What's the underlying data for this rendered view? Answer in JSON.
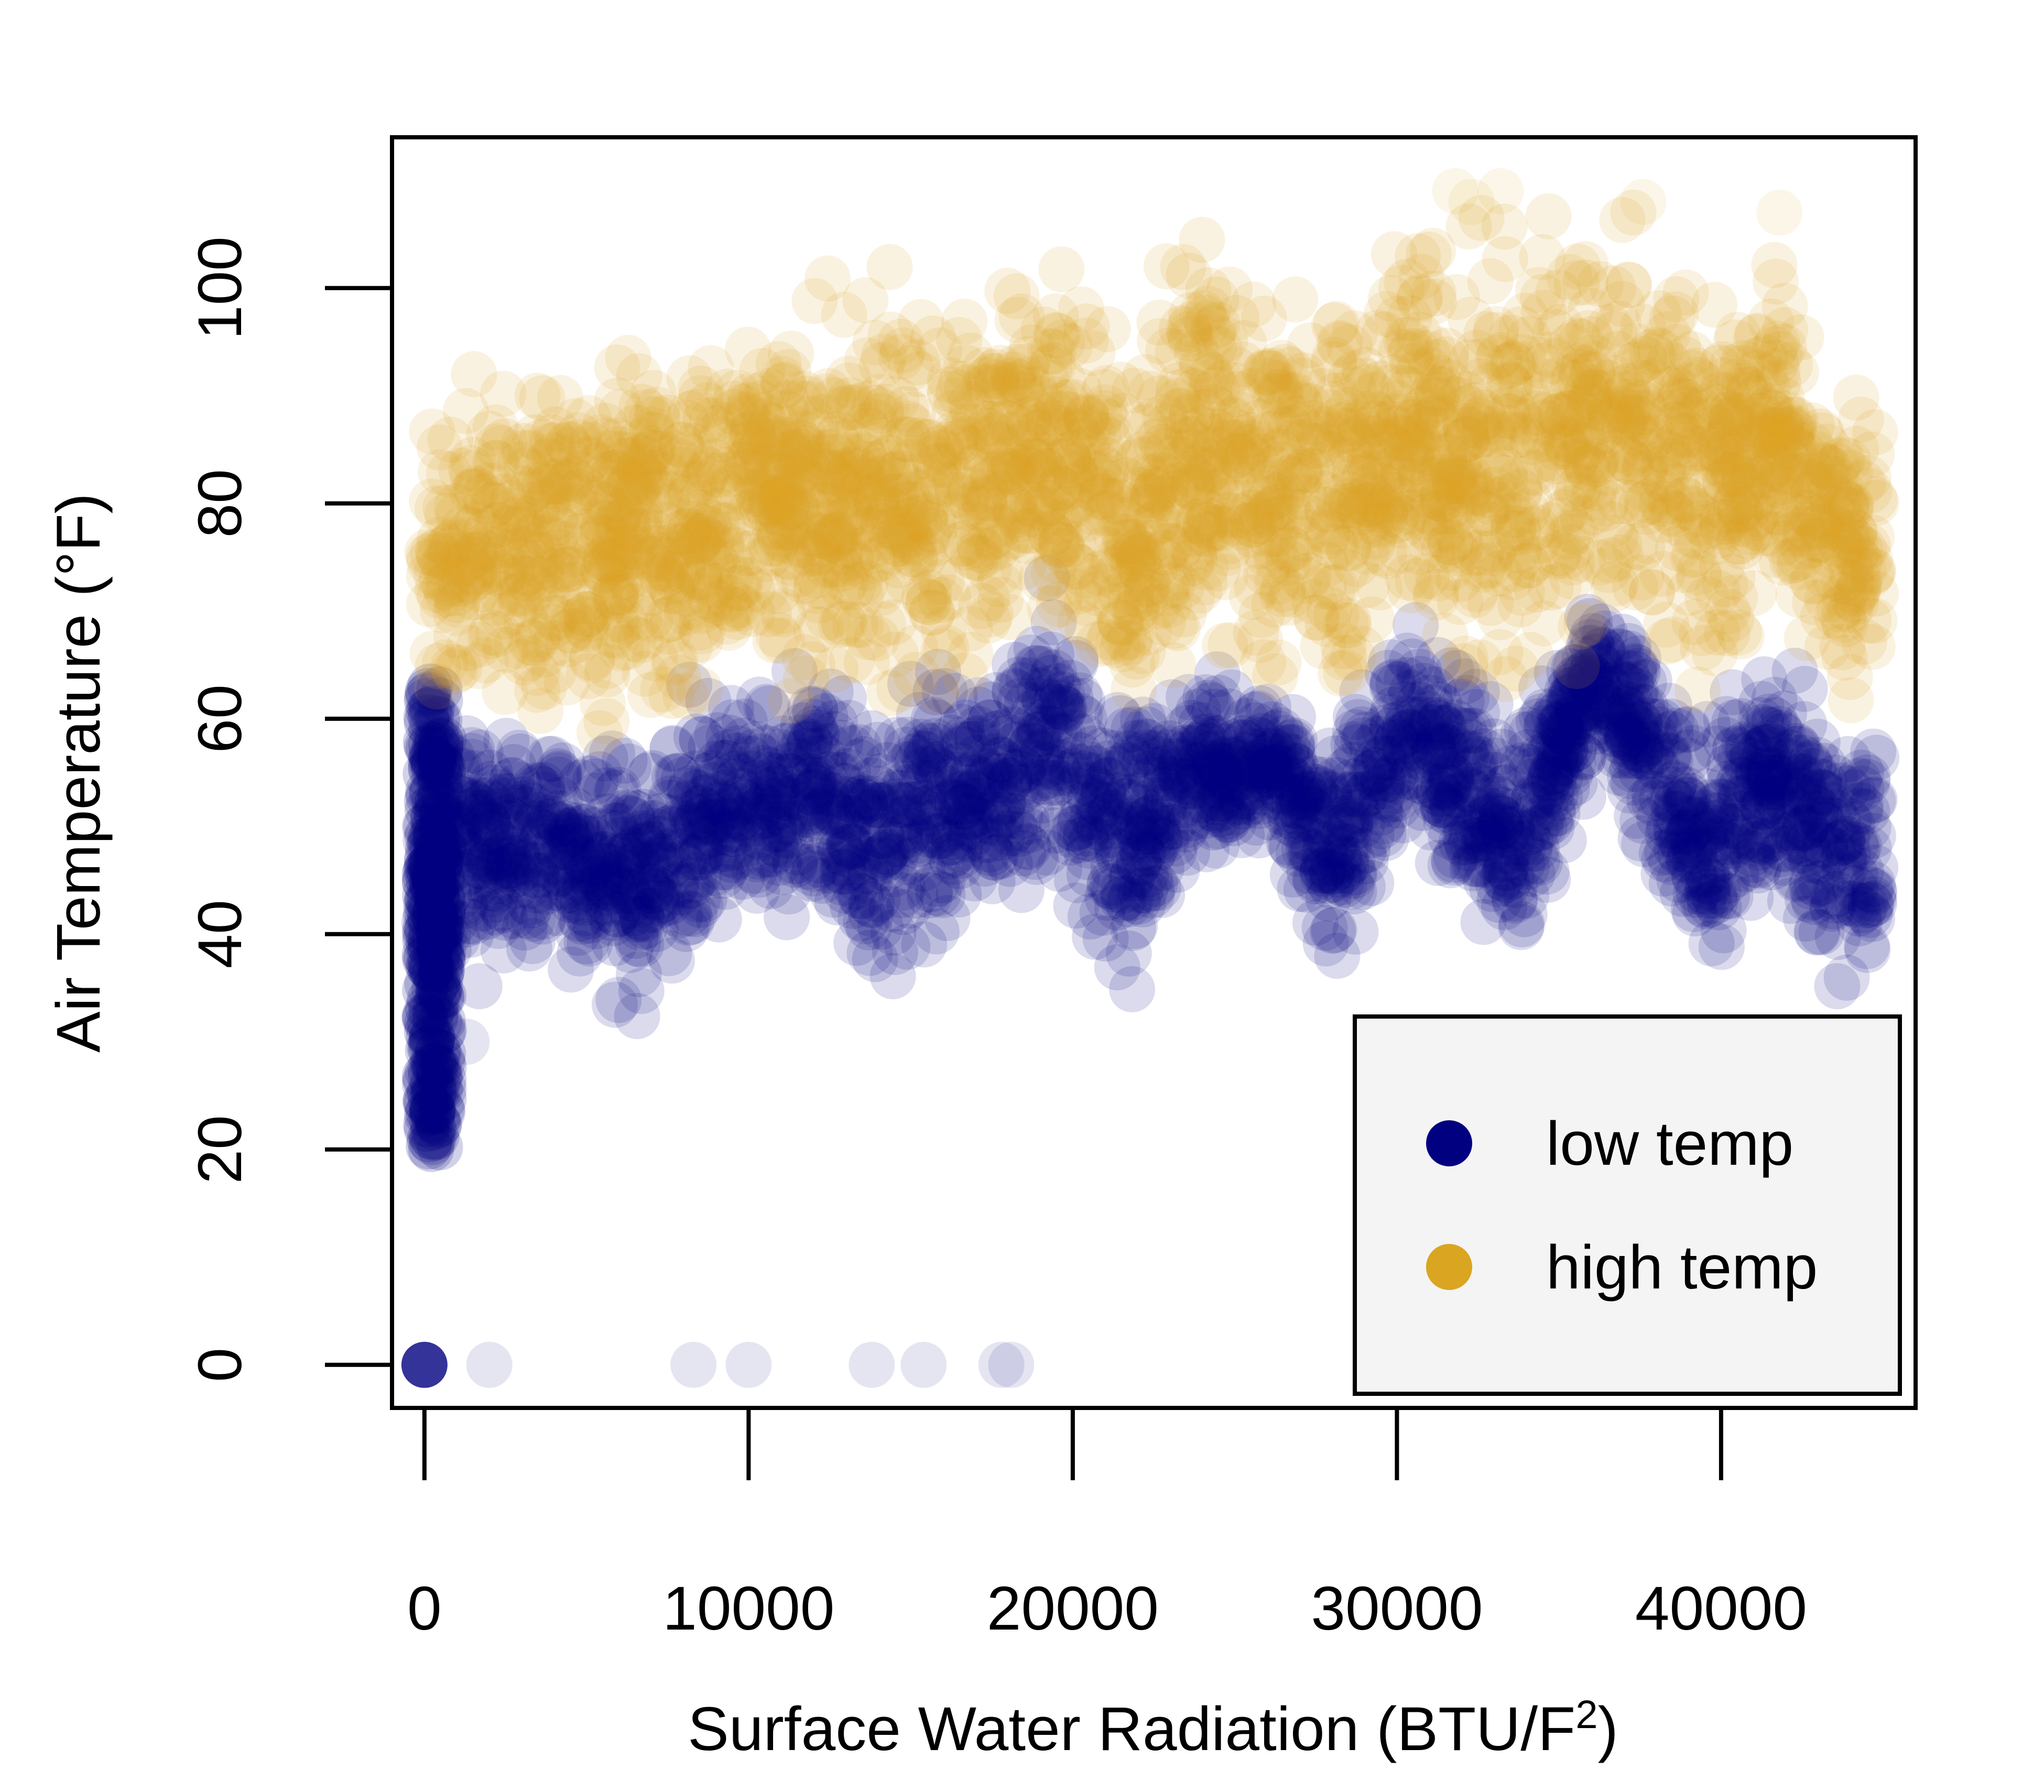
{
  "chart_data": {
    "type": "scatter",
    "xlabel": "Surface Water Radiation (BTU/F",
    "xlabel_sup": "2",
    "xlabel_close": ")",
    "ylabel": "Air Temperature (°F)",
    "xlim": [
      -1000,
      46000
    ],
    "ylim": [
      -4,
      114
    ],
    "x_ticks": [
      0,
      10000,
      20000,
      30000,
      40000
    ],
    "x_tick_labels": [
      "0",
      "10000",
      "20000",
      "30000",
      "40000"
    ],
    "y_ticks": [
      0,
      20,
      40,
      60,
      80,
      100
    ],
    "y_tick_labels": [
      "0",
      "20",
      "40",
      "60",
      "80",
      "100"
    ],
    "grid": false,
    "legend_position": "bottom-right",
    "series": [
      {
        "name": "low temp",
        "color": "#000080",
        "profile": [
          {
            "x": 0,
            "lo": 20,
            "hi": 63
          },
          {
            "x": 1000,
            "lo": 35,
            "hi": 60
          },
          {
            "x": 4000,
            "lo": 37,
            "hi": 60
          },
          {
            "x": 6500,
            "lo": 32,
            "hi": 58
          },
          {
            "x": 9000,
            "lo": 39,
            "hi": 64
          },
          {
            "x": 12000,
            "lo": 40,
            "hi": 66
          },
          {
            "x": 14000,
            "lo": 35,
            "hi": 62
          },
          {
            "x": 17000,
            "lo": 41,
            "hi": 66
          },
          {
            "x": 19500,
            "lo": 44,
            "hi": 73
          },
          {
            "x": 21500,
            "lo": 33,
            "hi": 62
          },
          {
            "x": 24000,
            "lo": 46,
            "hi": 65
          },
          {
            "x": 26500,
            "lo": 48,
            "hi": 62
          },
          {
            "x": 27800,
            "lo": 35,
            "hi": 60
          },
          {
            "x": 30500,
            "lo": 50,
            "hi": 70
          },
          {
            "x": 33700,
            "lo": 35,
            "hi": 60
          },
          {
            "x": 36000,
            "lo": 55,
            "hi": 74
          },
          {
            "x": 39500,
            "lo": 34,
            "hi": 60
          },
          {
            "x": 41500,
            "lo": 45,
            "hi": 65
          },
          {
            "x": 43500,
            "lo": 33,
            "hi": 62
          },
          {
            "x": 44800,
            "lo": 35,
            "hi": 60
          }
        ],
        "outliers": [
          [
            0,
            0
          ],
          [
            2000,
            0
          ],
          [
            8300,
            0
          ],
          [
            10000,
            0
          ],
          [
            13800,
            0
          ],
          [
            15400,
            0
          ],
          [
            17800,
            0
          ],
          [
            18100,
            0
          ],
          [
            1300,
            30
          ]
        ]
      },
      {
        "name": "high temp",
        "color": "#DAA520",
        "profile": [
          {
            "x": 0,
            "lo": 62,
            "hi": 91
          },
          {
            "x": 2000,
            "lo": 60,
            "hi": 93
          },
          {
            "x": 5000,
            "lo": 58,
            "hi": 95
          },
          {
            "x": 8000,
            "lo": 60,
            "hi": 97
          },
          {
            "x": 11000,
            "lo": 62,
            "hi": 99
          },
          {
            "x": 14000,
            "lo": 60,
            "hi": 100
          },
          {
            "x": 17000,
            "lo": 63,
            "hi": 102
          },
          {
            "x": 20500,
            "lo": 65,
            "hi": 104
          },
          {
            "x": 21500,
            "lo": 58,
            "hi": 95
          },
          {
            "x": 23500,
            "lo": 63,
            "hi": 105
          },
          {
            "x": 26500,
            "lo": 62,
            "hi": 104
          },
          {
            "x": 27800,
            "lo": 57,
            "hi": 100
          },
          {
            "x": 30500,
            "lo": 66,
            "hi": 106
          },
          {
            "x": 33500,
            "lo": 60,
            "hi": 107
          },
          {
            "x": 36500,
            "lo": 70,
            "hi": 108
          },
          {
            "x": 39500,
            "lo": 60,
            "hi": 103
          },
          {
            "x": 41500,
            "lo": 70,
            "hi": 104
          },
          {
            "x": 43000,
            "lo": 62,
            "hi": 92
          },
          {
            "x": 44800,
            "lo": 60,
            "hi": 91
          }
        ],
        "outliers": [
          [
            32300,
            108
          ],
          [
            33200,
            109
          ],
          [
            41800,
            107
          ],
          [
            37600,
            108
          ],
          [
            31800,
            109
          ]
        ]
      }
    ]
  }
}
